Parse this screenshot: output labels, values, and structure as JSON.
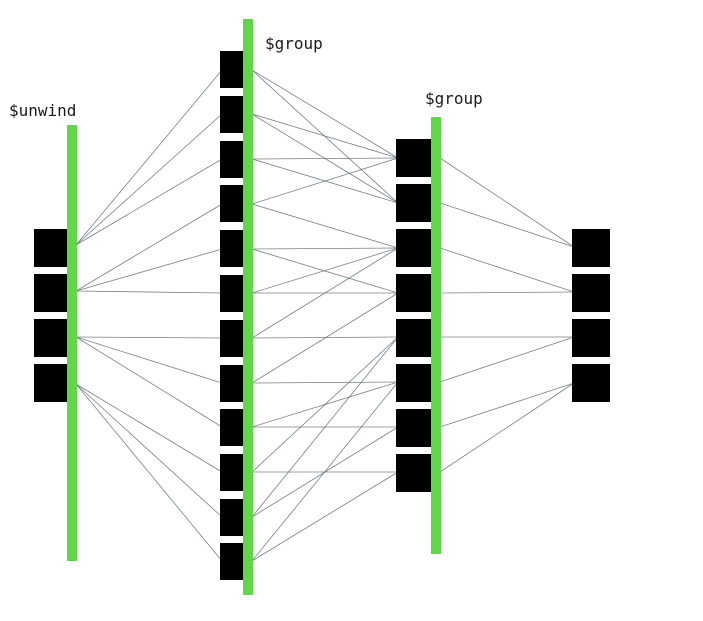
{
  "colors": {
    "stage_bar": "#62d64b",
    "document_block": "#000000",
    "connector": "#5f6b73",
    "label": "#1a1a1a"
  },
  "stages": [
    {
      "key": "input",
      "label": "",
      "block_count": 4
    },
    {
      "key": "unwind",
      "label": "$unwind",
      "block_count": 12
    },
    {
      "key": "group1",
      "label": "$group",
      "block_count": 8
    },
    {
      "key": "group2",
      "label": "$group",
      "block_count": 4
    }
  ]
}
